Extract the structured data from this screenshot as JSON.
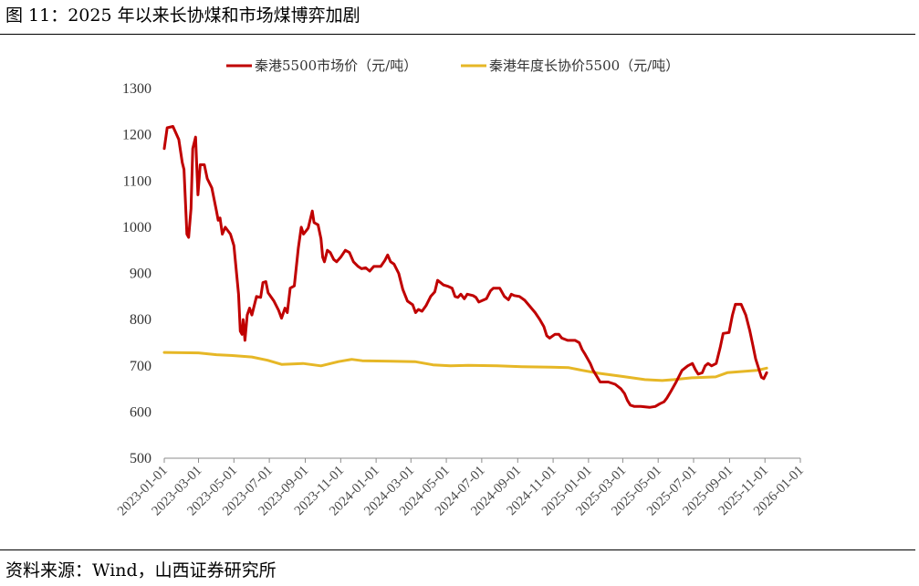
{
  "header": {
    "title": "图 11：2025 年以来长协煤和市场煤博弈加剧"
  },
  "footer": {
    "source": "资料来源：Wind，山西证券研究所"
  },
  "chart_data": {
    "type": "line",
    "ylim": [
      500,
      1300
    ],
    "y_ticks": [
      "1300",
      "1200",
      "1100",
      "1000",
      "900",
      "800",
      "700",
      "600",
      "500"
    ],
    "x_ticks": [
      "2023-01-01",
      "2023-03-01",
      "2023-05-01",
      "2023-07-01",
      "2023-09-01",
      "2023-11-01",
      "2024-01-01",
      "2024-03-01",
      "2024-05-01",
      "2024-07-01",
      "2024-09-01",
      "2024-11-01",
      "2025-01-01",
      "2025-03-01",
      "2025-05-01",
      "2025-07-01",
      "2025-09-01",
      "2025-11-01",
      "2026-01-01"
    ],
    "legend_position": "top",
    "grid": false,
    "series": [
      {
        "name": "秦港5500市场价（元/吨）",
        "color": "#C00000",
        "points": [
          [
            "2023-01-01",
            1170
          ],
          [
            "2023-01-06",
            1215
          ],
          [
            "2023-01-16",
            1218
          ],
          [
            "2023-01-26",
            1190
          ],
          [
            "2023-02-01",
            1140
          ],
          [
            "2023-02-04",
            1125
          ],
          [
            "2023-02-09",
            985
          ],
          [
            "2023-02-12",
            978
          ],
          [
            "2023-02-16",
            1040
          ],
          [
            "2023-02-19",
            1170
          ],
          [
            "2023-02-24",
            1195
          ],
          [
            "2023-02-28",
            1070
          ],
          [
            "2023-03-04",
            1135
          ],
          [
            "2023-03-11",
            1135
          ],
          [
            "2023-03-16",
            1105
          ],
          [
            "2023-03-24",
            1085
          ],
          [
            "2023-04-01",
            1035
          ],
          [
            "2023-04-04",
            1015
          ],
          [
            "2023-04-07",
            1020
          ],
          [
            "2023-04-11",
            985
          ],
          [
            "2023-04-16",
            1000
          ],
          [
            "2023-04-25",
            985
          ],
          [
            "2023-05-01",
            960
          ],
          [
            "2023-05-09",
            855
          ],
          [
            "2023-05-12",
            775
          ],
          [
            "2023-05-15",
            768
          ],
          [
            "2023-05-17",
            800
          ],
          [
            "2023-05-20",
            755
          ],
          [
            "2023-05-24",
            810
          ],
          [
            "2023-05-28",
            825
          ],
          [
            "2023-06-01",
            810
          ],
          [
            "2023-06-09",
            850
          ],
          [
            "2023-06-16",
            848
          ],
          [
            "2023-06-20",
            880
          ],
          [
            "2023-06-25",
            882
          ],
          [
            "2023-06-29",
            858
          ],
          [
            "2023-07-09",
            840
          ],
          [
            "2023-07-17",
            820
          ],
          [
            "2023-07-22",
            803
          ],
          [
            "2023-07-28",
            825
          ],
          [
            "2023-08-01",
            815
          ],
          [
            "2023-08-06",
            868
          ],
          [
            "2023-08-13",
            873
          ],
          [
            "2023-08-20",
            955
          ],
          [
            "2023-08-25",
            1000
          ],
          [
            "2023-08-29",
            985
          ],
          [
            "2023-09-06",
            998
          ],
          [
            "2023-09-13",
            1035
          ],
          [
            "2023-09-16",
            1010
          ],
          [
            "2023-09-23",
            1005
          ],
          [
            "2023-09-28",
            975
          ],
          [
            "2023-10-01",
            935
          ],
          [
            "2023-10-04",
            925
          ],
          [
            "2023-10-09",
            950
          ],
          [
            "2023-10-14",
            945
          ],
          [
            "2023-10-20",
            930
          ],
          [
            "2023-10-25",
            925
          ],
          [
            "2023-11-01",
            935
          ],
          [
            "2023-11-09",
            950
          ],
          [
            "2023-11-16",
            945
          ],
          [
            "2023-11-23",
            925
          ],
          [
            "2023-12-01",
            915
          ],
          [
            "2023-12-07",
            910
          ],
          [
            "2023-12-14",
            912
          ],
          [
            "2023-12-21",
            905
          ],
          [
            "2023-12-28",
            915
          ],
          [
            "2024-01-09",
            915
          ],
          [
            "2024-01-16",
            928
          ],
          [
            "2024-01-21",
            940
          ],
          [
            "2024-01-26",
            925
          ],
          [
            "2024-02-01",
            920
          ],
          [
            "2024-02-09",
            900
          ],
          [
            "2024-02-16",
            865
          ],
          [
            "2024-02-24",
            840
          ],
          [
            "2024-03-04",
            832
          ],
          [
            "2024-03-09",
            815
          ],
          [
            "2024-03-14",
            822
          ],
          [
            "2024-03-20",
            818
          ],
          [
            "2024-03-27",
            830
          ],
          [
            "2024-04-04",
            850
          ],
          [
            "2024-04-11",
            860
          ],
          [
            "2024-04-16",
            885
          ],
          [
            "2024-04-21",
            880
          ],
          [
            "2024-04-26",
            875
          ],
          [
            "2024-05-04",
            872
          ],
          [
            "2024-05-11",
            868
          ],
          [
            "2024-05-16",
            850
          ],
          [
            "2024-05-21",
            848
          ],
          [
            "2024-05-26",
            855
          ],
          [
            "2024-06-01",
            845
          ],
          [
            "2024-06-06",
            855
          ],
          [
            "2024-06-16",
            852
          ],
          [
            "2024-06-21",
            848
          ],
          [
            "2024-06-26",
            838
          ],
          [
            "2024-07-09",
            845
          ],
          [
            "2024-07-16",
            862
          ],
          [
            "2024-07-21",
            868
          ],
          [
            "2024-08-01",
            868
          ],
          [
            "2024-08-09",
            850
          ],
          [
            "2024-08-16",
            843
          ],
          [
            "2024-08-21",
            855
          ],
          [
            "2024-08-26",
            852
          ],
          [
            "2024-09-04",
            850
          ],
          [
            "2024-09-13",
            842
          ],
          [
            "2024-09-21",
            830
          ],
          [
            "2024-10-01",
            815
          ],
          [
            "2024-10-09",
            800
          ],
          [
            "2024-10-16",
            785
          ],
          [
            "2024-10-21",
            765
          ],
          [
            "2024-10-26",
            760
          ],
          [
            "2024-11-04",
            768
          ],
          [
            "2024-11-11",
            768
          ],
          [
            "2024-11-16",
            760
          ],
          [
            "2024-11-26",
            755
          ],
          [
            "2024-12-09",
            755
          ],
          [
            "2024-12-16",
            750
          ],
          [
            "2024-12-21",
            735
          ],
          [
            "2024-12-26",
            725
          ],
          [
            "2025-01-04",
            705
          ],
          [
            "2025-01-09",
            690
          ],
          [
            "2025-01-14",
            680
          ],
          [
            "2025-01-21",
            665
          ],
          [
            "2025-02-04",
            665
          ],
          [
            "2025-02-16",
            660
          ],
          [
            "2025-02-26",
            650
          ],
          [
            "2025-03-04",
            640
          ],
          [
            "2025-03-09",
            625
          ],
          [
            "2025-03-14",
            615
          ],
          [
            "2025-03-21",
            612
          ],
          [
            "2025-04-01",
            612
          ],
          [
            "2025-04-16",
            610
          ],
          [
            "2025-04-26",
            612
          ],
          [
            "2025-05-04",
            618
          ],
          [
            "2025-05-11",
            622
          ],
          [
            "2025-05-16",
            630
          ],
          [
            "2025-05-23",
            645
          ],
          [
            "2025-06-01",
            665
          ],
          [
            "2025-06-11",
            690
          ],
          [
            "2025-06-21",
            700
          ],
          [
            "2025-06-29",
            705
          ],
          [
            "2025-07-04",
            692
          ],
          [
            "2025-07-09",
            682
          ],
          [
            "2025-07-16",
            685
          ],
          [
            "2025-07-21",
            700
          ],
          [
            "2025-07-26",
            705
          ],
          [
            "2025-08-01",
            700
          ],
          [
            "2025-08-09",
            705
          ],
          [
            "2025-08-16",
            740
          ],
          [
            "2025-08-21",
            770
          ],
          [
            "2025-08-31",
            772
          ],
          [
            "2025-09-06",
            810
          ],
          [
            "2025-09-11",
            833
          ],
          [
            "2025-09-21",
            833
          ],
          [
            "2025-09-29",
            810
          ],
          [
            "2025-10-06",
            775
          ],
          [
            "2025-10-11",
            745
          ],
          [
            "2025-10-16",
            715
          ],
          [
            "2025-10-21",
            695
          ],
          [
            "2025-10-26",
            675
          ],
          [
            "2025-10-30",
            672
          ],
          [
            "2025-11-04",
            685
          ]
        ]
      },
      {
        "name": "秦港年度长协价5500（元/吨）",
        "color": "#E6B726",
        "points": [
          [
            "2023-01-01",
            729
          ],
          [
            "2023-03-01",
            728
          ],
          [
            "2023-04-01",
            724
          ],
          [
            "2023-05-01",
            722
          ],
          [
            "2023-06-01",
            719
          ],
          [
            "2023-06-28",
            712
          ],
          [
            "2023-07-22",
            703
          ],
          [
            "2023-08-28",
            705
          ],
          [
            "2023-09-28",
            700
          ],
          [
            "2023-10-28",
            709
          ],
          [
            "2023-11-20",
            714
          ],
          [
            "2023-12-08",
            711
          ],
          [
            "2024-01-28",
            710
          ],
          [
            "2024-03-08",
            709
          ],
          [
            "2024-04-08",
            702
          ],
          [
            "2024-05-08",
            700
          ],
          [
            "2024-06-08",
            701
          ],
          [
            "2024-07-28",
            700
          ],
          [
            "2024-09-08",
            698
          ],
          [
            "2024-10-28",
            697
          ],
          [
            "2024-11-28",
            696
          ],
          [
            "2024-12-22",
            690
          ],
          [
            "2025-01-18",
            684
          ],
          [
            "2025-02-28",
            677
          ],
          [
            "2025-04-08",
            670
          ],
          [
            "2025-05-08",
            668
          ],
          [
            "2025-05-28",
            670
          ],
          [
            "2025-06-28",
            674
          ],
          [
            "2025-08-08",
            676
          ],
          [
            "2025-08-28",
            685
          ],
          [
            "2025-10-18",
            690
          ],
          [
            "2025-11-04",
            695
          ]
        ]
      }
    ]
  }
}
